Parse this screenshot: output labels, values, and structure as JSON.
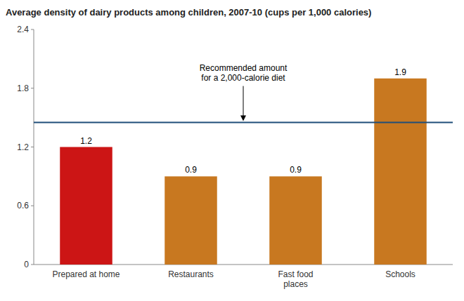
{
  "chart_data": {
    "type": "bar",
    "title": "Average density of dairy products among children, 2007-10 (cups per 1,000 calories)",
    "categories": [
      "Prepared at home",
      "Restaurants",
      "Fast food\nplaces",
      "Schools"
    ],
    "values": [
      1.2,
      0.9,
      0.9,
      1.9
    ],
    "colors": [
      "#cc1515",
      "#c87820",
      "#c87820",
      "#c87820"
    ],
    "data_labels": true,
    "ylim": [
      0,
      2.4
    ],
    "yticks": [
      0,
      0.6,
      1.2,
      1.8,
      2.4
    ],
    "grid": false,
    "reference_line": {
      "value": 1.45,
      "color": "#1f4e79",
      "label": "Recommended amount\nfor a 2,000-calorie diet"
    }
  }
}
